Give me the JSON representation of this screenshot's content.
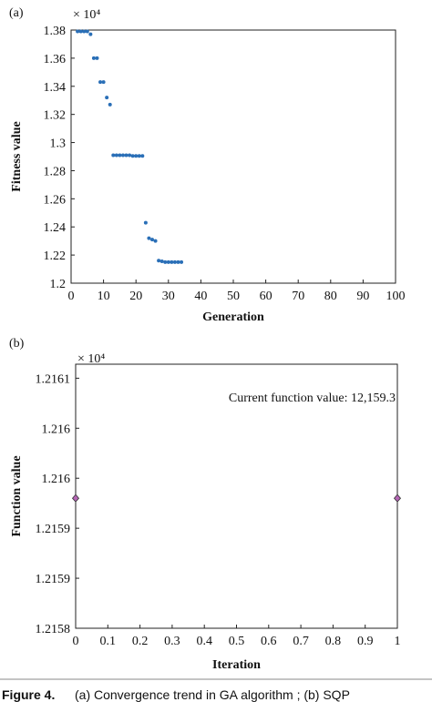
{
  "chart_data": [
    {
      "type": "scatter",
      "panel_label": "(a)",
      "x_label": "Generation",
      "y_label": "Fitness value",
      "y_scale_label": "× 10⁴",
      "x": [
        2,
        3,
        4,
        5,
        6,
        7,
        8,
        9,
        10,
        11,
        12,
        13,
        14,
        15,
        16,
        17,
        18,
        19,
        20,
        21,
        22,
        23,
        24,
        25,
        26,
        27,
        28,
        29,
        30,
        31,
        32,
        33,
        34
      ],
      "values": [
        1.379,
        1.379,
        1.379,
        1.379,
        1.377,
        1.36,
        1.36,
        1.343,
        1.343,
        1.332,
        1.327,
        1.291,
        1.291,
        1.291,
        1.291,
        1.291,
        1.291,
        1.2905,
        1.2905,
        1.2905,
        1.2905,
        1.243,
        1.232,
        1.231,
        1.23,
        1.216,
        1.2155,
        1.215,
        1.215,
        1.215,
        1.215,
        1.215,
        1.215
      ],
      "color": "#2a6fb7",
      "marker": "circle",
      "xlim": [
        0,
        100
      ],
      "xticks": [
        0,
        10,
        20,
        30,
        40,
        50,
        60,
        70,
        80,
        90,
        100
      ],
      "ylim": [
        1.2,
        1.38
      ],
      "yticks": [
        1.2,
        1.22,
        1.24,
        1.26,
        1.28,
        1.3,
        1.32,
        1.34,
        1.36,
        1.38
      ]
    },
    {
      "type": "scatter",
      "panel_label": "(b)",
      "x_label": "Iteration",
      "y_label": "Function value",
      "y_scale_label": "× 10⁴",
      "annotation": "Current function value: 12,159.3",
      "x": [
        0,
        1
      ],
      "values": [
        1.21593,
        1.21593
      ],
      "color": "#b565b5",
      "marker": "diamond",
      "xlim": [
        0,
        1
      ],
      "xticks": [
        0,
        0.1,
        0.2,
        0.3,
        0.4,
        0.5,
        0.6,
        0.7,
        0.8,
        0.9,
        1
      ],
      "ylim": [
        1.2158,
        1.216064
      ],
      "yticks": [
        {
          "value": 1.2158,
          "label": "1.2158"
        },
        {
          "value": 1.21585,
          "label": "1.2159"
        },
        {
          "value": 1.2159,
          "label": "1.2159"
        },
        {
          "value": 1.21595,
          "label": "1.216"
        },
        {
          "value": 1.216,
          "label": "1.216"
        },
        {
          "value": 1.21605,
          "label": "1.2161"
        }
      ]
    }
  ],
  "caption": {
    "label": "Figure 4.",
    "text": "(a) Convergence trend in GA algorithm ; (b) SQP"
  }
}
